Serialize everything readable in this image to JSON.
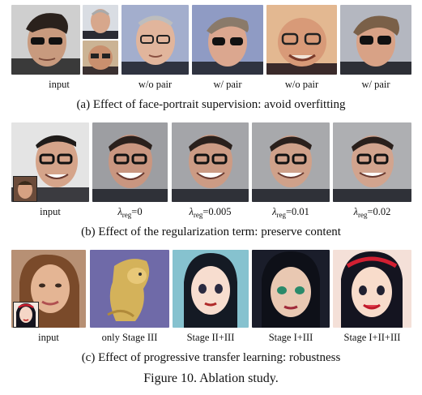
{
  "figure_caption": "Figure 10. Ablation study.",
  "row_a": {
    "caption": "(a) Effect of face-portrait supervision: avoid overfitting",
    "labels": [
      "input",
      "w/o pair",
      "w/ pair",
      "w/o pair",
      "w/ pair"
    ]
  },
  "row_b": {
    "caption": "(b) Effect of the regularization term: preserve content",
    "input_label": "input",
    "lambda_symbol": "λ",
    "lambda_sub": "reg",
    "values": [
      "=0",
      "=0.005",
      "=0.01",
      "=0.02"
    ]
  },
  "row_c": {
    "caption": "(c) Effect of progressive transfer learning: robustness",
    "labels": [
      "input",
      "only Stage III",
      "Stage II+III",
      "Stage I+III",
      "Stage I+II+III"
    ]
  }
}
